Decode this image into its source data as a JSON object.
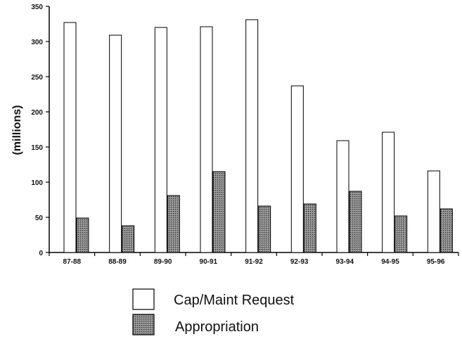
{
  "chart_data": {
    "type": "bar",
    "title": "",
    "xlabel": "",
    "ylabel": "(millions)",
    "ylim": [
      0,
      350
    ],
    "yticks": [
      0,
      50,
      100,
      150,
      200,
      250,
      300,
      350
    ],
    "grid": false,
    "legend_position": "bottom",
    "categories": [
      "87-88",
      "88-89",
      "89-90",
      "90-91",
      "91-92",
      "92-93",
      "93-94",
      "94-95",
      "95-96"
    ],
    "series": [
      {
        "name": "Cap/Maint Request",
        "color": "#ffffff",
        "values": [
          327,
          309,
          320,
          321,
          331,
          237,
          159,
          171,
          116
        ]
      },
      {
        "name": "Appropriation",
        "color": "#555555",
        "values": [
          49,
          38,
          81,
          115,
          66,
          69,
          87,
          52,
          62
        ]
      }
    ]
  }
}
